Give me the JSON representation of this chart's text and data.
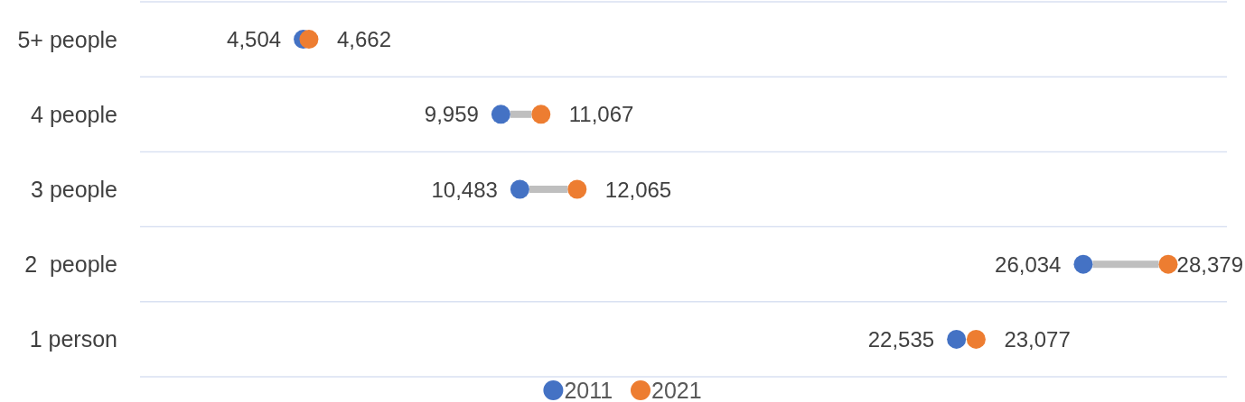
{
  "chart_data": {
    "type": "scatter",
    "orientation": "horizontal",
    "categories": [
      "5+ people",
      "4 people",
      "3 people",
      "2  people",
      "1 person"
    ],
    "xlim": [
      0,
      30000
    ],
    "tick_labels": "y",
    "grid": "y",
    "legend": "bottom",
    "marker": "circle",
    "series": [
      {
        "name": "2011",
        "color": "#4472c4",
        "values": [
          4504,
          9959,
          10483,
          26034,
          22535
        ],
        "value_labels": [
          "4,504",
          "9,959",
          "10,483",
          "26,034",
          "22,535"
        ]
      },
      {
        "name": "2021",
        "color": "#ed7d31",
        "values": [
          4662,
          11067,
          12065,
          28379,
          23077
        ],
        "value_labels": [
          "4,662",
          "11,067",
          "12,065",
          "28,379",
          "23,077"
        ]
      }
    ]
  }
}
